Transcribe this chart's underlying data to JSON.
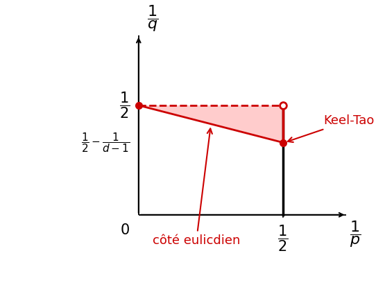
{
  "background_color": "#ffffff",
  "red_color": "#cc0000",
  "light_red_fill": "#ffcccc",
  "point_A": [
    0.0,
    0.5
  ],
  "point_B": [
    0.5,
    0.5
  ],
  "point_C": [
    0.5,
    0.33
  ],
  "xlim": [
    -0.08,
    0.72
  ],
  "ylim": [
    -0.12,
    0.82
  ],
  "label_keel_tao": "Keel-Tao",
  "label_cote": "côté eulicdien",
  "font_size_axis_label": 16,
  "font_size_ticks": 14,
  "font_size_annot": 13
}
